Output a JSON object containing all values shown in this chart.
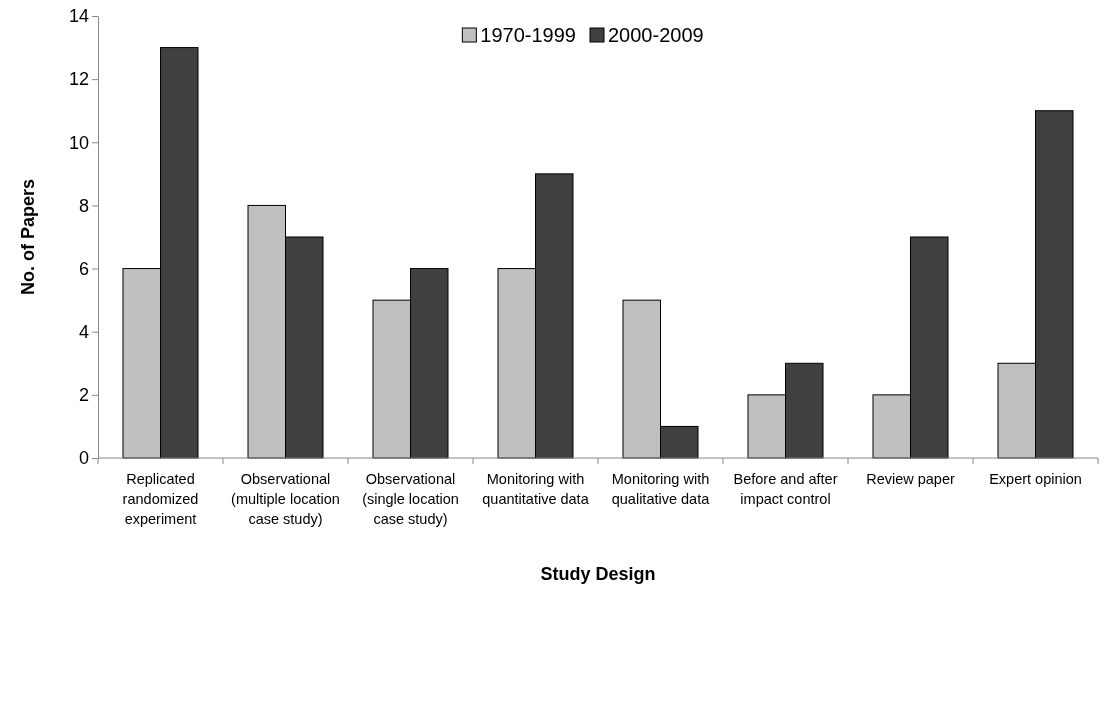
{
  "chart_data": {
    "type": "bar",
    "xlabel": "Study Design",
    "ylabel": "No. of Papers",
    "categories": [
      "Replicated randomized experiment",
      "Observational (multiple location case study)",
      "Observational (single location case study)",
      "Monitoring with quantitative data",
      "Monitoring with qualitative data",
      "Before and after impact control",
      "Review paper",
      "Expert opinion"
    ],
    "series": [
      {
        "name": "1970-1999",
        "color": "#c0c0c0",
        "values": [
          6,
          8,
          5,
          6,
          5,
          2,
          2,
          3
        ]
      },
      {
        "name": "2000-2009",
        "color": "#404040",
        "values": [
          13,
          7,
          6,
          9,
          1,
          3,
          7,
          11
        ]
      }
    ],
    "ylim": [
      0,
      14
    ],
    "yticks": [
      0,
      2,
      4,
      6,
      8,
      10,
      12,
      14
    ],
    "grid": false,
    "legend": "top"
  }
}
